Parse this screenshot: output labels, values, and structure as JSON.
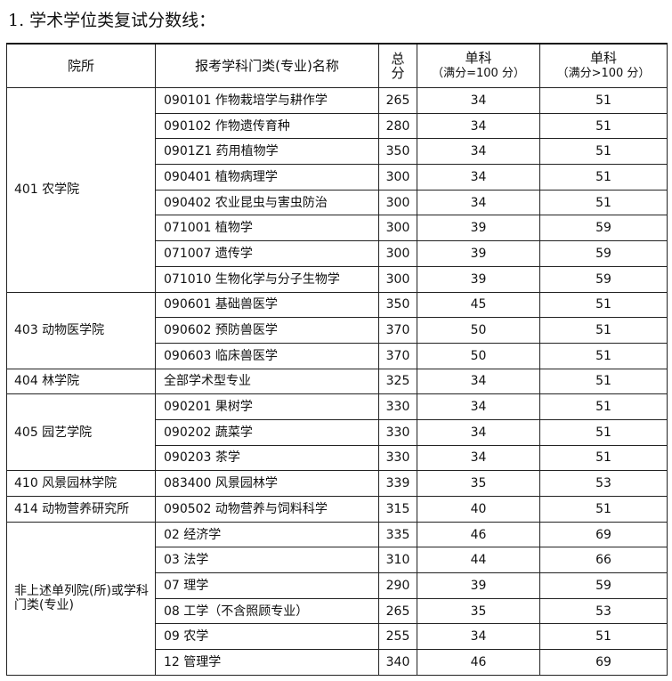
{
  "title": "1. 学术学位类复试分数线：",
  "headers": {
    "institute": "院所",
    "major": "报考学科门类(专业)名称",
    "total": [
      "总",
      "分"
    ],
    "single100": [
      "单科",
      "（满分=100 分）"
    ],
    "single_gt100": [
      "单科",
      "（满分>100 分）"
    ]
  },
  "groups": [
    {
      "institute": "401 农学院",
      "rows": [
        {
          "major": "090101 作物栽培学与耕作学",
          "total": "265",
          "s100": "34",
          "sgt100": "51"
        },
        {
          "major": "090102 作物遗传育种",
          "total": "280",
          "s100": "34",
          "sgt100": "51"
        },
        {
          "major": "0901Z1 药用植物学",
          "total": "350",
          "s100": "34",
          "sgt100": "51"
        },
        {
          "major": "090401 植物病理学",
          "total": "300",
          "s100": "34",
          "sgt100": "51"
        },
        {
          "major": "090402 农业昆虫与害虫防治",
          "total": "300",
          "s100": "34",
          "sgt100": "51"
        },
        {
          "major": "071001 植物学",
          "total": "300",
          "s100": "39",
          "sgt100": "59"
        },
        {
          "major": "071007 遗传学",
          "total": "300",
          "s100": "39",
          "sgt100": "59"
        },
        {
          "major": "071010 生物化学与分子生物学",
          "total": "300",
          "s100": "39",
          "sgt100": "59"
        }
      ]
    },
    {
      "institute": "403 动物医学院",
      "rows": [
        {
          "major": "090601 基础兽医学",
          "total": "350",
          "s100": "45",
          "sgt100": "51"
        },
        {
          "major": "090602 预防兽医学",
          "total": "370",
          "s100": "50",
          "sgt100": "51"
        },
        {
          "major": "090603 临床兽医学",
          "total": "370",
          "s100": "50",
          "sgt100": "51"
        }
      ]
    },
    {
      "institute": "404 林学院",
      "rows": [
        {
          "major": "全部学术型专业",
          "total": "325",
          "s100": "34",
          "sgt100": "51"
        }
      ]
    },
    {
      "institute": "405 园艺学院",
      "rows": [
        {
          "major": "090201 果树学",
          "total": "330",
          "s100": "34",
          "sgt100": "51"
        },
        {
          "major": "090202 蔬菜学",
          "total": "330",
          "s100": "34",
          "sgt100": "51"
        },
        {
          "major": "090203 茶学",
          "total": "330",
          "s100": "34",
          "sgt100": "51"
        }
      ]
    },
    {
      "institute": "410 风景园林学院",
      "rows": [
        {
          "major": "083400 风景园林学",
          "total": "339",
          "s100": "35",
          "sgt100": "53"
        }
      ]
    },
    {
      "institute": "414 动物营养研究所",
      "rows": [
        {
          "major": "090502 动物营养与饲料科学",
          "total": "315",
          "s100": "40",
          "sgt100": "51"
        }
      ]
    },
    {
      "institute": "非上述单列院(所)或学科门类(专业)",
      "rows": [
        {
          "major": "02 经济学",
          "total": "335",
          "s100": "46",
          "sgt100": "69"
        },
        {
          "major": "03 法学",
          "total": "310",
          "s100": "44",
          "sgt100": "66"
        },
        {
          "major": "07 理学",
          "total": "290",
          "s100": "39",
          "sgt100": "59"
        },
        {
          "major": "08 工学（不含照顾专业）",
          "total": "265",
          "s100": "35",
          "sgt100": "53"
        },
        {
          "major": "09 农学",
          "total": "255",
          "s100": "34",
          "sgt100": "51"
        },
        {
          "major": "12 管理学",
          "total": "340",
          "s100": "46",
          "sgt100": "69"
        }
      ]
    }
  ]
}
